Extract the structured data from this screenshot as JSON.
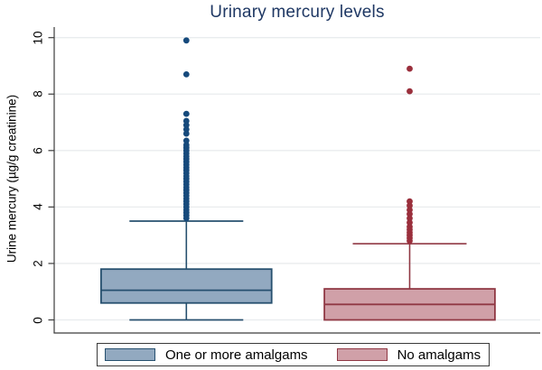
{
  "title": "Urinary mercury levels",
  "colors": {
    "title": "#1f3864",
    "axis": "#3c3c3c",
    "grid": "#e9ecee",
    "tick_text": "#000000",
    "blue_fill": "#92a9c0",
    "blue_stroke": "#27506f",
    "blue_dot": "#164a7c",
    "red_fill": "#d0a0a8",
    "red_stroke": "#903844",
    "red_dot": "#9a2f3c",
    "legend_border": "#3a3a3a"
  },
  "chart_data": {
    "type": "box",
    "title": "Urinary mercury levels",
    "ylabel": "Urine mercury (µg/g creatinine)",
    "ylim": [
      0,
      10.4
    ],
    "yticks": [
      0,
      2,
      4,
      6,
      8,
      10
    ],
    "grid": true,
    "ytick_angle": 90,
    "legend_position": "bottom",
    "groups": [
      {
        "name": "One or more amalgams",
        "color": "blue",
        "q1": 0.6,
        "median": 1.05,
        "q3": 1.8,
        "whisker_low": 0,
        "whisker_high": 3.5,
        "outliers": [
          9.9,
          8.7,
          7.3,
          7.05,
          6.9,
          6.75,
          6.6,
          6.35,
          6.2,
          6.1,
          6.0,
          5.9,
          5.8,
          5.7,
          5.6,
          5.5,
          5.4,
          5.3,
          5.2,
          5.1,
          5.0,
          4.9,
          4.8,
          4.7,
          4.6,
          4.5,
          4.4,
          4.3,
          4.2,
          4.1,
          4.0,
          3.9,
          3.8,
          3.7,
          3.6
        ]
      },
      {
        "name": "No amalgams",
        "color": "red",
        "q1": 0,
        "median": 0.55,
        "q3": 1.1,
        "whisker_low": 0,
        "whisker_high": 2.7,
        "outliers": [
          8.9,
          8.1,
          4.2,
          4.05,
          3.9,
          3.75,
          3.6,
          3.45,
          3.3,
          3.2,
          3.1,
          3.0,
          2.9,
          2.8
        ]
      }
    ]
  }
}
